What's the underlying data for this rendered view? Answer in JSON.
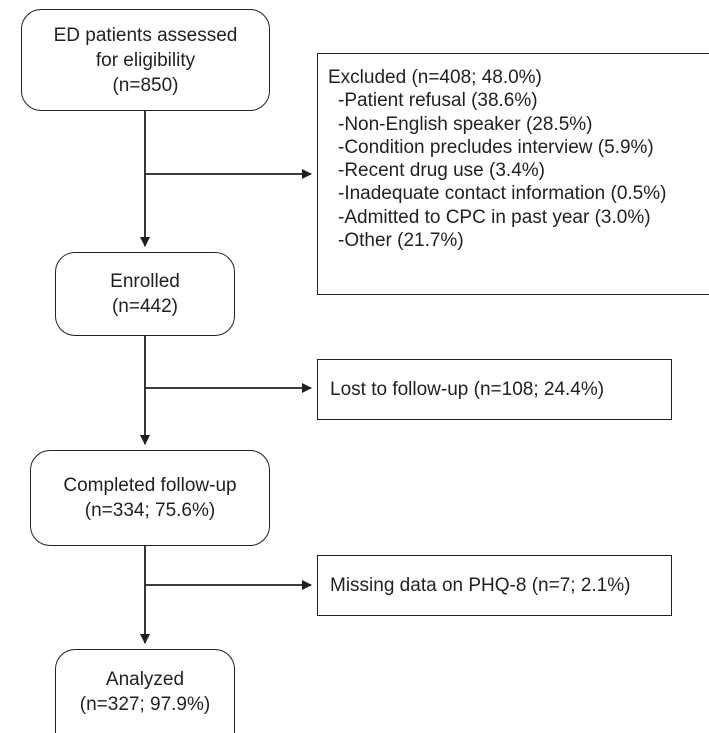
{
  "boxes": {
    "assessed": {
      "line1": "ED patients assessed",
      "line2": "for eligibility",
      "line3": "(n=850)"
    },
    "enrolled": {
      "line1": "Enrolled",
      "line2": "(n=442)"
    },
    "completed": {
      "line1": "Completed follow-up",
      "line2": "(n=334; 75.6%)"
    },
    "analyzed": {
      "line1": "Analyzed",
      "line2": "(n=327; 97.9%)"
    }
  },
  "excluded": {
    "header": "Excluded (n=408; 48.0%)",
    "reasons": [
      "-Patient refusal (38.6%)",
      "-Non-English speaker (28.5%)",
      "-Condition precludes interview (5.9%)",
      "-Recent drug use (3.4%)",
      "-Inadequate contact information (0.5%)",
      "-Admitted to CPC in past year (3.0%)",
      "-Other (21.7%)"
    ]
  },
  "lost": "Lost to follow-up (n=108; 24.4%)",
  "missing": "Missing data on PHQ-8 (n=7; 2.1%)"
}
